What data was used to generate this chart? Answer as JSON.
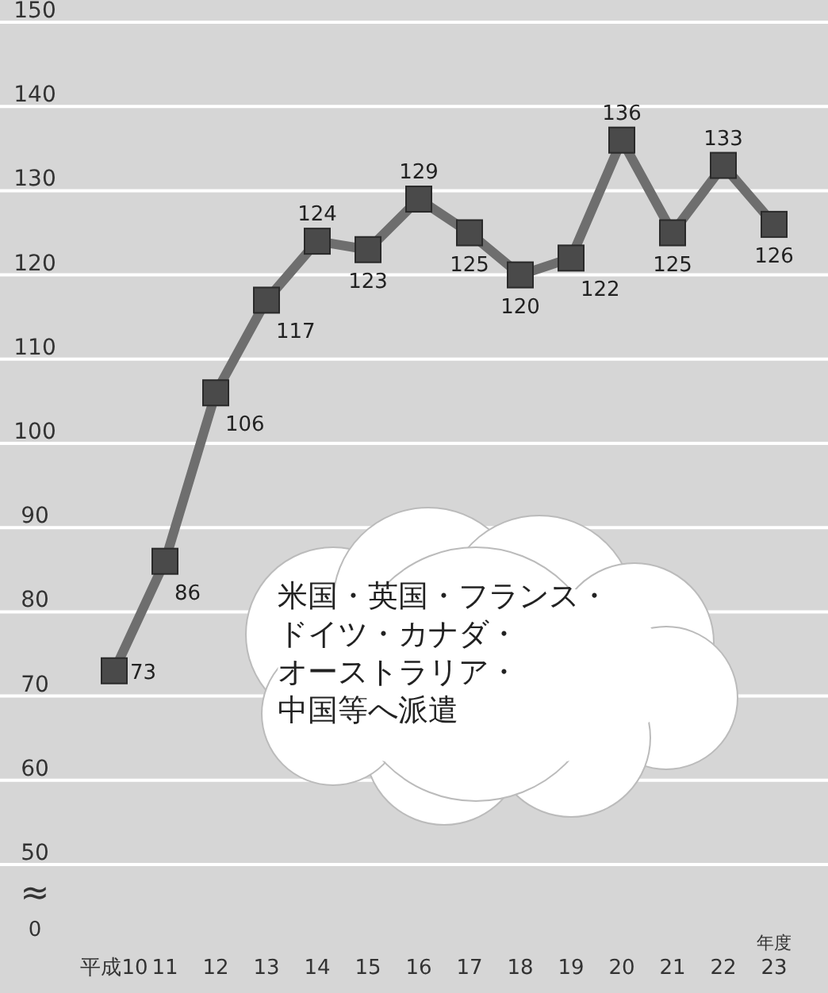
{
  "chart_data": {
    "type": "line",
    "categories": [
      "平成10",
      "11",
      "12",
      "13",
      "14",
      "15",
      "16",
      "17",
      "18",
      "19",
      "20",
      "21",
      "22",
      "23"
    ],
    "values": [
      73,
      86,
      106,
      117,
      124,
      123,
      129,
      125,
      120,
      122,
      136,
      125,
      133,
      126
    ],
    "color": "#6e6e6e",
    "marker": "square",
    "data_labels": true,
    "xlabel": "年度",
    "ylim": [
      50,
      150
    ],
    "yticks": [
      50,
      60,
      70,
      80,
      90,
      100,
      110,
      120,
      130,
      140,
      150
    ],
    "grid": "y",
    "annotations": [
      "米国・英国・フランス・ドイツ・カナダ・オーストラリア・中国等へ派遣",
      "≈",
      "0"
    ]
  }
}
